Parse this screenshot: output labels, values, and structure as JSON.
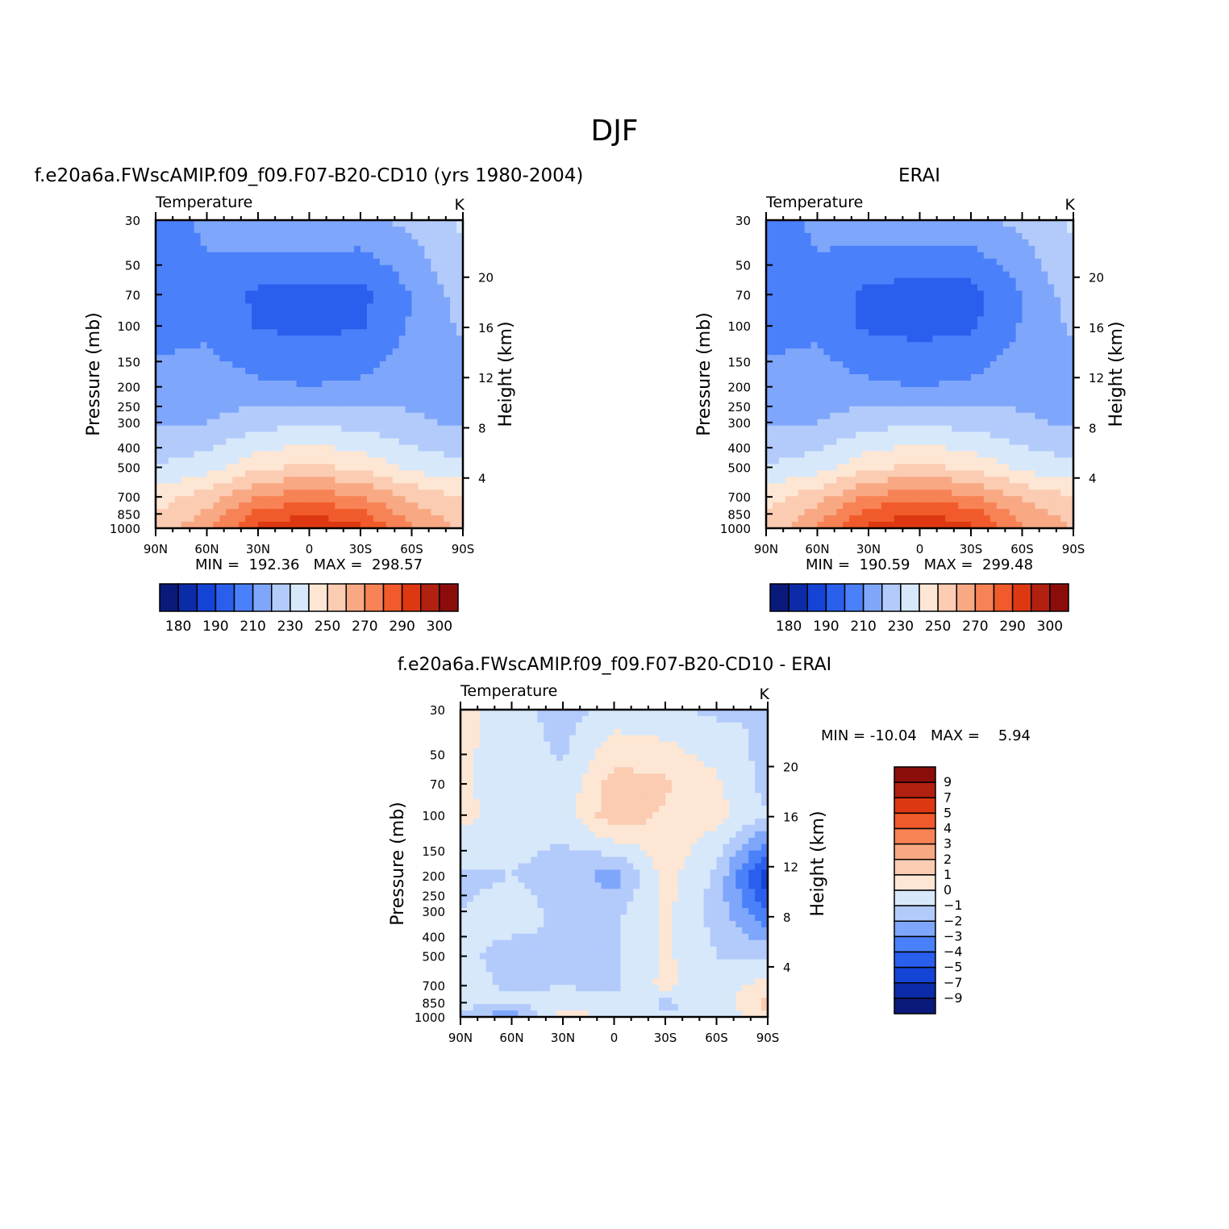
{
  "figure": {
    "title": "DJF",
    "colors": {
      "abs_scale": [
        "#0a1a7a",
        "#0b2ba8",
        "#1344d6",
        "#2a5fee",
        "#4a80fa",
        "#7ea6fb",
        "#b3cbfb",
        "#d7e8fb",
        "#fde6d4",
        "#fbcbb2",
        "#f8a883",
        "#f78255",
        "#f15a2a",
        "#dd3812",
        "#b22010",
        "#8b0d0a"
      ],
      "diff_scale": [
        "#0a1a7a",
        "#0b2ba8",
        "#1344d6",
        "#2a5fee",
        "#4a80fa",
        "#7ea6fb",
        "#b3cbfb",
        "#d7e8fb",
        "#fde6d4",
        "#fbcbb2",
        "#f8a883",
        "#f78255",
        "#f15a2a",
        "#dd3812",
        "#b22010",
        "#8b0d0a"
      ]
    },
    "panels": [
      {
        "name": "model",
        "title": "f.e20a6a.FWscAMIP.f09_f09.F07-B20-CD10 (yrs 1980-2004)",
        "left_label": "Temperature",
        "right_label": "K",
        "ylabel": "Pressure (mb)",
        "y2label": "Height (km)",
        "minmax": "MIN =  192.36   MAX =  298.57"
      },
      {
        "name": "obs",
        "title": "ERAI",
        "left_label": "Temperature",
        "right_label": "K",
        "ylabel": "Pressure (mb)",
        "y2label": "Height (km)",
        "minmax": "MIN =  190.59   MAX =  299.48"
      },
      {
        "name": "diff",
        "title": "f.e20a6a.FWscAMIP.f09_f09.F07-B20-CD10 - ERAI",
        "left_label": "Temperature",
        "right_label": "K",
        "ylabel": "Pressure (mb)",
        "y2label": "Height (km)",
        "minmax": "MIN = -10.04   MAX =    5.94"
      }
    ],
    "abs_colorbar_labels": [
      "180",
      "190",
      "210",
      "230",
      "250",
      "270",
      "290",
      "300"
    ],
    "diff_colorbar_labels": [
      "9",
      "7",
      "5",
      "4",
      "3",
      "2",
      "1",
      "0",
      "-1",
      "-2",
      "-3",
      "-4",
      "-5",
      "-7",
      "-9"
    ]
  },
  "chart_data": [
    {
      "type": "heatmap",
      "title": "f.e20a6a.FWscAMIP.f09_f09.F07-B20-CD10 (yrs 1980-2004)",
      "variable": "Temperature",
      "units": "K",
      "xlabel": "",
      "ylabel": "Pressure (mb)",
      "y2label": "Height (km)",
      "x_ticks": [
        "90N",
        "60N",
        "30N",
        "0",
        "30S",
        "60S",
        "90S"
      ],
      "y_ticks": [
        30,
        50,
        70,
        100,
        150,
        200,
        250,
        300,
        400,
        500,
        700,
        850,
        1000
      ],
      "y2_ticks": [
        4,
        8,
        12,
        16,
        20
      ],
      "y_scale": "log",
      "levels": [
        180,
        190,
        200,
        210,
        220,
        230,
        240,
        250,
        260,
        270,
        280,
        290,
        300
      ],
      "x": [
        -90,
        -60,
        -30,
        0,
        30,
        60,
        90
      ],
      "y": [
        30,
        70,
        100,
        200,
        300,
        500,
        700,
        850,
        1000
      ],
      "z": [
        [
          205,
          212,
          218,
          220,
          218,
          222,
          232
        ],
        [
          204,
          207,
          198,
          196,
          197,
          210,
          225
        ],
        [
          206,
          208,
          199,
          198,
          199,
          211,
          222
        ],
        [
          214,
          215,
          212,
          210,
          212,
          216,
          215
        ],
        [
          219,
          220,
          226,
          228,
          226,
          222,
          218
        ],
        [
          231,
          235,
          248,
          252,
          248,
          237,
          232
        ],
        [
          245,
          255,
          270,
          276,
          270,
          258,
          250
        ],
        [
          250,
          262,
          283,
          290,
          283,
          265,
          255
        ],
        [
          252,
          268,
          292,
          296,
          292,
          270,
          258
        ]
      ],
      "min": 192.36,
      "max": 298.57
    },
    {
      "type": "heatmap",
      "title": "ERAI",
      "variable": "Temperature",
      "units": "K",
      "xlabel": "",
      "ylabel": "Pressure (mb)",
      "y2label": "Height (km)",
      "x_ticks": [
        "90N",
        "60N",
        "30N",
        "0",
        "30S",
        "60S",
        "90S"
      ],
      "y_ticks": [
        30,
        50,
        70,
        100,
        150,
        200,
        250,
        300,
        400,
        500,
        700,
        850,
        1000
      ],
      "y2_ticks": [
        4,
        8,
        12,
        16,
        20
      ],
      "y_scale": "log",
      "levels": [
        180,
        190,
        200,
        210,
        220,
        230,
        240,
        250,
        260,
        270,
        280,
        290,
        300
      ],
      "x": [
        -90,
        -60,
        -30,
        0,
        30,
        60,
        90
      ],
      "y": [
        30,
        70,
        100,
        200,
        300,
        500,
        700,
        850,
        1000
      ],
      "z": [
        [
          205,
          212,
          218,
          219,
          218,
          222,
          232
        ],
        [
          204,
          207,
          197,
          195,
          196,
          210,
          225
        ],
        [
          206,
          208,
          198,
          197,
          198,
          211,
          222
        ],
        [
          214,
          215,
          212,
          210,
          212,
          216,
          215
        ],
        [
          219,
          220,
          226,
          228,
          226,
          222,
          218
        ],
        [
          231,
          235,
          248,
          252,
          248,
          237,
          232
        ],
        [
          245,
          256,
          271,
          277,
          271,
          259,
          250
        ],
        [
          251,
          264,
          285,
          291,
          285,
          266,
          256
        ],
        [
          253,
          270,
          293,
          297,
          293,
          272,
          259
        ]
      ],
      "min": 190.59,
      "max": 299.48
    },
    {
      "type": "heatmap",
      "title": "f.e20a6a.FWscAMIP.f09_f09.F07-B20-CD10 - ERAI",
      "variable": "Temperature",
      "units": "K",
      "xlabel": "",
      "ylabel": "Pressure (mb)",
      "y2label": "Height (km)",
      "x_ticks": [
        "90N",
        "60N",
        "30N",
        "0",
        "30S",
        "60S",
        "90S"
      ],
      "y_ticks": [
        30,
        50,
        70,
        100,
        150,
        200,
        250,
        300,
        400,
        500,
        700,
        850,
        1000
      ],
      "y2_ticks": [
        4,
        8,
        12,
        16,
        20
      ],
      "y_scale": "log",
      "levels": [
        -9,
        -7,
        -5,
        -4,
        -3,
        -2,
        -1,
        0,
        1,
        2,
        3,
        4,
        5,
        7,
        9
      ],
      "x": [
        -90,
        -60,
        -30,
        0,
        30,
        60,
        90
      ],
      "y": [
        30,
        70,
        100,
        200,
        300,
        500,
        700,
        850,
        1000
      ],
      "z": [
        [
          0.3,
          -0.5,
          -1.5,
          -0.6,
          -0.8,
          -1.2,
          -1.0
        ],
        [
          0.2,
          -0.6,
          -0.8,
          1.5,
          1.2,
          0.2,
          -1.5
        ],
        [
          0.3,
          -0.5,
          -0.6,
          1.8,
          0.8,
          0.3,
          -0.8
        ],
        [
          -1.2,
          -1.0,
          -1.5,
          -2.5,
          0.4,
          -1.2,
          -6.0
        ],
        [
          -1.0,
          -0.6,
          -1.2,
          -1.3,
          0.3,
          -1.5,
          -4.0
        ],
        [
          -0.8,
          -1.3,
          -1.0,
          -1.1,
          0.2,
          -1.0,
          -1.2
        ],
        [
          -0.6,
          -1.2,
          -1.0,
          -1.2,
          0.3,
          -0.8,
          0.6
        ],
        [
          -0.5,
          -0.8,
          -0.6,
          -0.7,
          -1.2,
          -0.8,
          1.5
        ],
        [
          -1.5,
          -3.0,
          0.8,
          -0.4,
          -0.8,
          -0.6,
          0.5
        ]
      ],
      "min": -10.04,
      "max": 5.94
    }
  ]
}
